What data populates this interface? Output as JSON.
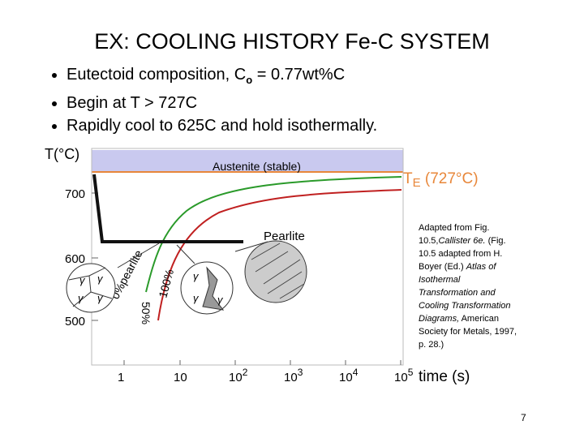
{
  "header": {
    "title": "EX:  COOLING HISTORY Fe-C SYSTEM"
  },
  "bullets": [
    {
      "text": "Eutectoid composition, C",
      "sub": "o",
      "rest": " = 0.77wt%C"
    },
    {
      "text": "Begin at T > 727C"
    },
    {
      "text": "Rapidly cool to 625C and hold isothermally."
    }
  ],
  "figure": {
    "y_axis_label": "T(°C)",
    "y_ticks": [
      "700",
      "600",
      "500"
    ],
    "x_axis_label": "time (s)",
    "x_ticks": [
      {
        "base": "1"
      },
      {
        "base": "10"
      },
      {
        "base": "10",
        "sup": "2"
      },
      {
        "base": "10",
        "sup": "3"
      },
      {
        "base": "10",
        "sup": "4"
      },
      {
        "base": "10",
        "sup": "5"
      }
    ],
    "region_label": "Austenite (stable)",
    "te_label": {
      "text": "T",
      "sub": "E",
      "rest": " (727°C)"
    },
    "pearlite_label": "Pearlite",
    "curve_labels": [
      "0%pearlite",
      "50%",
      "100%"
    ],
    "gamma": "γ"
  },
  "citation": [
    "Adapted from Fig. 10.5,",
    "Callister 6e.",
    "(Fig. 10.5 adapted from H. Boyer (Ed.)",
    "Atlas of Isothermal Transformation and Cooling Transformation Diagrams,",
    "American Society for Metals, 1997, p. 28.)"
  ],
  "page_number": "7"
}
